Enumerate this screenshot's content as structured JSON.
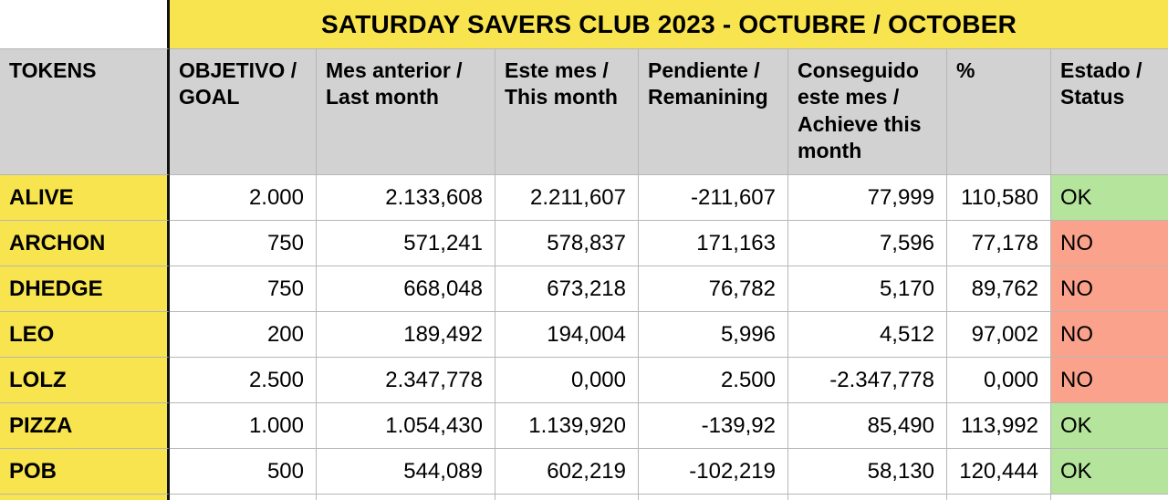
{
  "title": "SATURDAY SAVERS CLUB 2023 - OCTUBRE / OCTOBER",
  "columns": [
    {
      "label": "TOKENS"
    },
    {
      "label": "OBJETIVO / GOAL"
    },
    {
      "label": "Mes anterior / Last month"
    },
    {
      "label": "Este mes / This month"
    },
    {
      "label": "Pendiente / Remanining"
    },
    {
      "label": "Conseguido este mes / Achieve this month"
    },
    {
      "label": "%"
    },
    {
      "label": "Estado / Status"
    }
  ],
  "rows": [
    {
      "token": "ALIVE",
      "goal": "2.000",
      "last_month": "2.133,608",
      "this_month": "2.211,607",
      "remaining": "-211,607",
      "achieved": "77,999",
      "percent": "110,580",
      "status": "OK",
      "status_color": "#b5e49c"
    },
    {
      "token": "ARCHON",
      "goal": "750",
      "last_month": "571,241",
      "this_month": "578,837",
      "remaining": "171,163",
      "achieved": "7,596",
      "percent": "77,178",
      "status": "NO",
      "status_color": "#fba28c"
    },
    {
      "token": "DHEDGE",
      "goal": "750",
      "last_month": "668,048",
      "this_month": "673,218",
      "remaining": "76,782",
      "achieved": "5,170",
      "percent": "89,762",
      "status": "NO",
      "status_color": "#fba28c"
    },
    {
      "token": "LEO",
      "goal": "200",
      "last_month": "189,492",
      "this_month": "194,004",
      "remaining": "5,996",
      "achieved": "4,512",
      "percent": "97,002",
      "status": "NO",
      "status_color": "#fba28c"
    },
    {
      "token": "LOLZ",
      "goal": "2.500",
      "last_month": "2.347,778",
      "this_month": "0,000",
      "remaining": "2.500",
      "achieved": "-2.347,778",
      "percent": "0,000",
      "status": "NO",
      "status_color": "#fba28c"
    },
    {
      "token": "PIZZA",
      "goal": "1.000",
      "last_month": "1.054,430",
      "this_month": "1.139,920",
      "remaining": "-139,92",
      "achieved": "85,490",
      "percent": "113,992",
      "status": "OK",
      "status_color": "#b5e49c"
    },
    {
      "token": "POB",
      "goal": "500",
      "last_month": "544,089",
      "this_month": "602,219",
      "remaining": "-102,219",
      "achieved": "58,130",
      "percent": "120,444",
      "status": "OK",
      "status_color": "#b5e49c"
    }
  ],
  "colors": {
    "yellow": "#f7e44e",
    "header_gray": "#d2d2d2",
    "status_ok_green": "#b5e49c",
    "status_no_red": "#fba28c",
    "gridline": "#b7b7b7",
    "divider_black": "#111111"
  }
}
